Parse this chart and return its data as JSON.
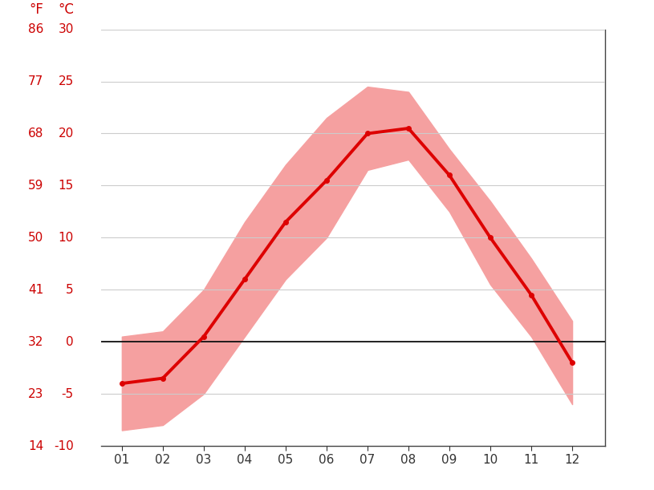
{
  "months": [
    1,
    2,
    3,
    4,
    5,
    6,
    7,
    8,
    9,
    10,
    11,
    12
  ],
  "month_labels": [
    "01",
    "02",
    "03",
    "04",
    "05",
    "06",
    "07",
    "08",
    "09",
    "10",
    "11",
    "12"
  ],
  "mean_temp": [
    -4.0,
    -3.5,
    0.5,
    6.0,
    11.5,
    15.5,
    20.0,
    20.5,
    16.0,
    10.0,
    4.5,
    -2.0
  ],
  "max_temp": [
    0.5,
    1.0,
    5.0,
    11.5,
    17.0,
    21.5,
    24.5,
    24.0,
    18.5,
    13.5,
    8.0,
    2.0
  ],
  "min_temp": [
    -8.5,
    -8.0,
    -5.0,
    0.5,
    6.0,
    10.0,
    16.5,
    17.5,
    12.5,
    5.5,
    0.5,
    -6.0
  ],
  "ylim_celsius": [
    -10,
    30
  ],
  "yticks_celsius": [
    -10,
    -5,
    0,
    5,
    10,
    15,
    20,
    25,
    30
  ],
  "yticks_fahrenheit": [
    14,
    23,
    32,
    41,
    50,
    59,
    68,
    77,
    86
  ],
  "mean_color": "#dd0000",
  "band_color": "#f5a0a0",
  "zero_line_color": "#000000",
  "grid_color": "#cccccc",
  "axis_label_color": "#cc0000",
  "tick_color": "#333333",
  "background_color": "#ffffff",
  "line_width": 2.8,
  "marker_size": 4,
  "figsize": [
    8.15,
    6.11
  ],
  "dpi": 100
}
